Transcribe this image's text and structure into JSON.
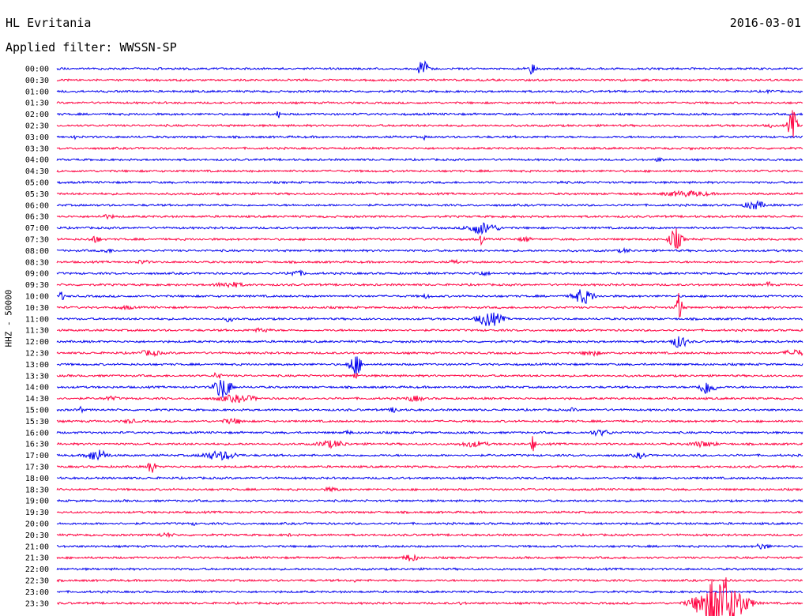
{
  "header": {
    "station": "HL Evritania",
    "date": "2016-03-01",
    "filter": "Applied filter: WWSSN-SP"
  },
  "channel_label": "HHZ - 50000",
  "colors": {
    "odd": "#0000ee",
    "even": "#ff0040"
  },
  "rows": [
    {
      "time": "00:00",
      "events": [
        [
          535,
          16,
          4
        ],
        [
          675,
          11,
          3
        ]
      ]
    },
    {
      "time": "00:30",
      "events": []
    },
    {
      "time": "01:00",
      "events": [
        [
          975,
          3,
          4
        ]
      ]
    },
    {
      "time": "01:30",
      "events": []
    },
    {
      "time": "02:00",
      "events": [
        [
          352,
          6,
          2
        ]
      ]
    },
    {
      "time": "02:30",
      "events": [
        [
          1003,
          20,
          4
        ],
        [
          975,
          3,
          2
        ]
      ]
    },
    {
      "time": "03:00",
      "events": [
        [
          97,
          5,
          2
        ],
        [
          537,
          4,
          1
        ]
      ]
    },
    {
      "time": "03:30",
      "events": [
        [
          875,
          2,
          5
        ]
      ]
    },
    {
      "time": "04:00",
      "events": [
        [
          835,
          3,
          5
        ]
      ]
    },
    {
      "time": "04:30",
      "events": []
    },
    {
      "time": "05:00",
      "events": [
        [
          710,
          2,
          8
        ]
      ]
    },
    {
      "time": "05:30",
      "events": [
        [
          870,
          4,
          25
        ]
      ]
    },
    {
      "time": "06:00",
      "events": [
        [
          955,
          6,
          10
        ]
      ]
    },
    {
      "time": "06:30",
      "events": [
        [
          135,
          3,
          10
        ]
      ]
    },
    {
      "time": "07:00",
      "events": [
        [
          610,
          8,
          15
        ]
      ]
    },
    {
      "time": "07:30",
      "events": [
        [
          855,
          14,
          6
        ],
        [
          120,
          5,
          6
        ],
        [
          610,
          8,
          2
        ],
        [
          665,
          4,
          6
        ]
      ]
    },
    {
      "time": "08:00",
      "events": [
        [
          135,
          3,
          8
        ],
        [
          790,
          3,
          8
        ]
      ]
    },
    {
      "time": "08:30",
      "events": [
        [
          180,
          3,
          8
        ],
        [
          575,
          3,
          6
        ]
      ]
    },
    {
      "time": "09:00",
      "events": [
        [
          375,
          4,
          10
        ],
        [
          610,
          3,
          10
        ]
      ]
    },
    {
      "time": "09:30",
      "events": [
        [
          290,
          4,
          15
        ],
        [
          973,
          6,
          2
        ]
      ]
    },
    {
      "time": "10:00",
      "events": [
        [
          738,
          10,
          10
        ],
        [
          78,
          8,
          2
        ],
        [
          540,
          4,
          3
        ]
      ]
    },
    {
      "time": "10:30",
      "events": [
        [
          860,
          20,
          3
        ],
        [
          160,
          3,
          8
        ]
      ]
    },
    {
      "time": "11:00",
      "events": [
        [
          620,
          10,
          12
        ],
        [
          290,
          4,
          5
        ]
      ]
    },
    {
      "time": "11:30",
      "events": [
        [
          330,
          3,
          12
        ]
      ]
    },
    {
      "time": "12:00",
      "events": [
        [
          860,
          8,
          8
        ]
      ]
    },
    {
      "time": "12:30",
      "events": [
        [
          190,
          4,
          12
        ],
        [
          1005,
          5,
          10
        ],
        [
          748,
          4,
          10
        ]
      ]
    },
    {
      "time": "13:00",
      "events": [
        [
          450,
          14,
          6
        ]
      ]
    },
    {
      "time": "13:30",
      "events": [
        [
          275,
          5,
          4
        ],
        [
          450,
          6,
          2
        ]
      ]
    },
    {
      "time": "14:00",
      "events": [
        [
          282,
          14,
          8
        ],
        [
          895,
          10,
          8
        ]
      ]
    },
    {
      "time": "14:30",
      "events": [
        [
          300,
          5,
          20
        ],
        [
          525,
          4,
          10
        ],
        [
          140,
          3,
          10
        ]
      ]
    },
    {
      "time": "15:00",
      "events": [
        [
          500,
          4,
          6
        ],
        [
          102,
          5,
          2
        ],
        [
          725,
          3,
          4
        ]
      ]
    },
    {
      "time": "15:30",
      "events": [
        [
          295,
          4,
          12
        ],
        [
          165,
          3,
          8
        ]
      ]
    },
    {
      "time": "16:00",
      "events": [
        [
          760,
          4,
          12
        ],
        [
          440,
          3,
          5
        ]
      ]
    },
    {
      "time": "16:30",
      "events": [
        [
          420,
          5,
          15
        ],
        [
          600,
          4,
          15
        ],
        [
          675,
          12,
          2
        ],
        [
          890,
          4,
          15
        ]
      ]
    },
    {
      "time": "17:00",
      "events": [
        [
          123,
          8,
          10
        ],
        [
          278,
          6,
          18
        ],
        [
          810,
          4,
          8
        ]
      ]
    },
    {
      "time": "17:30",
      "events": [
        [
          192,
          14,
          3
        ]
      ]
    },
    {
      "time": "18:00",
      "events": []
    },
    {
      "time": "18:30",
      "events": [
        [
          420,
          3,
          10
        ]
      ]
    },
    {
      "time": "19:00",
      "events": []
    },
    {
      "time": "19:30",
      "events": []
    },
    {
      "time": "20:00",
      "events": [
        [
          245,
          3,
          2
        ]
      ]
    },
    {
      "time": "20:30",
      "events": [
        [
          210,
          3,
          10
        ],
        [
          365,
          2,
          6
        ]
      ]
    },
    {
      "time": "21:00",
      "events": [
        [
          965,
          4,
          8
        ]
      ]
    },
    {
      "time": "21:30",
      "events": [
        [
          520,
          5,
          8
        ]
      ]
    },
    {
      "time": "22:00",
      "events": []
    },
    {
      "time": "22:30",
      "events": [
        [
          448,
          3,
          2
        ]
      ]
    },
    {
      "time": "23:00",
      "events": []
    },
    {
      "time": "23:30",
      "events": [
        [
          912,
          36,
          20
        ],
        [
          585,
          3,
          4
        ]
      ]
    }
  ]
}
